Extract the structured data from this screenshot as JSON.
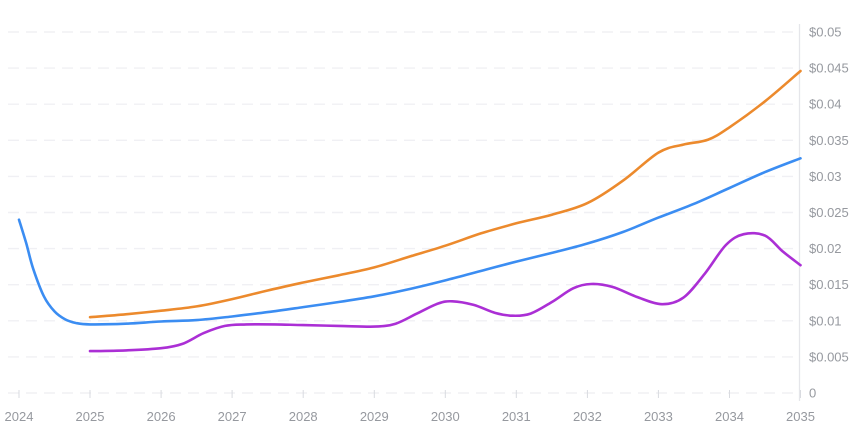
{
  "chart_data": {
    "type": "line",
    "title": "",
    "xlabel": "",
    "ylabel": "",
    "legend": "none",
    "grid": "horizontal-dashed",
    "y_axis_position": "right",
    "xlim": [
      2023.85,
      2035.05
    ],
    "ylim": [
      0,
      0.05
    ],
    "x_ticks": [
      2024,
      2025,
      2026,
      2027,
      2028,
      2029,
      2030,
      2031,
      2032,
      2033,
      2034,
      2035
    ],
    "x_tick_labels": [
      "2024",
      "2025",
      "2026",
      "2027",
      "2028",
      "2029",
      "2030",
      "2031",
      "2032",
      "2033",
      "2034",
      "2035"
    ],
    "y_ticks": [
      0,
      0.005,
      0.01,
      0.015,
      0.02,
      0.025,
      0.03,
      0.035,
      0.04,
      0.045,
      0.05
    ],
    "y_tick_labels": [
      "0",
      "$0.005",
      "$0.01",
      "$0.015",
      "$0.02",
      "$0.025",
      "$0.03",
      "$0.035",
      "$0.04",
      "$0.045",
      "$0.05"
    ],
    "colors": {
      "grid": "#f0f0f4",
      "axis_line": "#e5e6ea",
      "tick_mark": "#d9dbe0",
      "tick_label": "#96999f",
      "background": "#ffffff"
    },
    "series": [
      {
        "name": "series-blue",
        "color": "#3b8df2",
        "points": [
          [
            2024.0,
            0.024
          ],
          [
            2024.1,
            0.0208
          ],
          [
            2024.2,
            0.0172
          ],
          [
            2024.35,
            0.0134
          ],
          [
            2024.5,
            0.0113
          ],
          [
            2024.65,
            0.0102
          ],
          [
            2024.8,
            0.0097
          ],
          [
            2025.0,
            0.0095
          ],
          [
            2025.5,
            0.0096
          ],
          [
            2026.0,
            0.0099
          ],
          [
            2026.5,
            0.0101
          ],
          [
            2027.0,
            0.0106
          ],
          [
            2027.5,
            0.0112
          ],
          [
            2028.0,
            0.0119
          ],
          [
            2028.5,
            0.0126
          ],
          [
            2029.0,
            0.0134
          ],
          [
            2029.5,
            0.0144
          ],
          [
            2030.0,
            0.0156
          ],
          [
            2030.5,
            0.0169
          ],
          [
            2031.0,
            0.0182
          ],
          [
            2031.5,
            0.0194
          ],
          [
            2032.0,
            0.0207
          ],
          [
            2032.5,
            0.0223
          ],
          [
            2033.0,
            0.0243
          ],
          [
            2033.5,
            0.0262
          ],
          [
            2034.0,
            0.0284
          ],
          [
            2034.5,
            0.0306
          ],
          [
            2035.0,
            0.0325
          ]
        ]
      },
      {
        "name": "series-orange",
        "color": "#ec8a2d",
        "points": [
          [
            2025.0,
            0.0105
          ],
          [
            2025.5,
            0.0109
          ],
          [
            2026.0,
            0.0114
          ],
          [
            2026.5,
            0.012
          ],
          [
            2027.0,
            0.013
          ],
          [
            2027.5,
            0.0142
          ],
          [
            2028.0,
            0.0153
          ],
          [
            2028.5,
            0.0163
          ],
          [
            2029.0,
            0.0174
          ],
          [
            2029.5,
            0.0189
          ],
          [
            2030.0,
            0.0204
          ],
          [
            2030.5,
            0.0221
          ],
          [
            2031.0,
            0.0235
          ],
          [
            2031.5,
            0.0247
          ],
          [
            2032.0,
            0.0263
          ],
          [
            2032.5,
            0.0294
          ],
          [
            2033.0,
            0.0333
          ],
          [
            2033.35,
            0.0344
          ],
          [
            2033.7,
            0.0351
          ],
          [
            2034.0,
            0.0368
          ],
          [
            2034.5,
            0.0404
          ],
          [
            2035.0,
            0.0446
          ]
        ]
      },
      {
        "name": "series-purple",
        "color": "#ab2fd5",
        "points": [
          [
            2025.0,
            0.0058
          ],
          [
            2025.5,
            0.0059
          ],
          [
            2026.0,
            0.0062
          ],
          [
            2026.3,
            0.0068
          ],
          [
            2026.6,
            0.0083
          ],
          [
            2026.9,
            0.0093
          ],
          [
            2027.2,
            0.0095
          ],
          [
            2027.6,
            0.0095
          ],
          [
            2028.0,
            0.0094
          ],
          [
            2028.5,
            0.0093
          ],
          [
            2029.0,
            0.0092
          ],
          [
            2029.3,
            0.0096
          ],
          [
            2029.6,
            0.011
          ],
          [
            2029.9,
            0.0124
          ],
          [
            2030.1,
            0.0127
          ],
          [
            2030.4,
            0.0122
          ],
          [
            2030.7,
            0.0111
          ],
          [
            2030.95,
            0.0107
          ],
          [
            2031.2,
            0.011
          ],
          [
            2031.5,
            0.0126
          ],
          [
            2031.8,
            0.0145
          ],
          [
            2032.05,
            0.0151
          ],
          [
            2032.35,
            0.0147
          ],
          [
            2032.7,
            0.0133
          ],
          [
            2033.05,
            0.0123
          ],
          [
            2033.35,
            0.0132
          ],
          [
            2033.65,
            0.0165
          ],
          [
            2033.95,
            0.0205
          ],
          [
            2034.2,
            0.022
          ],
          [
            2034.5,
            0.0218
          ],
          [
            2034.75,
            0.0196
          ],
          [
            2035.0,
            0.0177
          ]
        ]
      }
    ]
  }
}
